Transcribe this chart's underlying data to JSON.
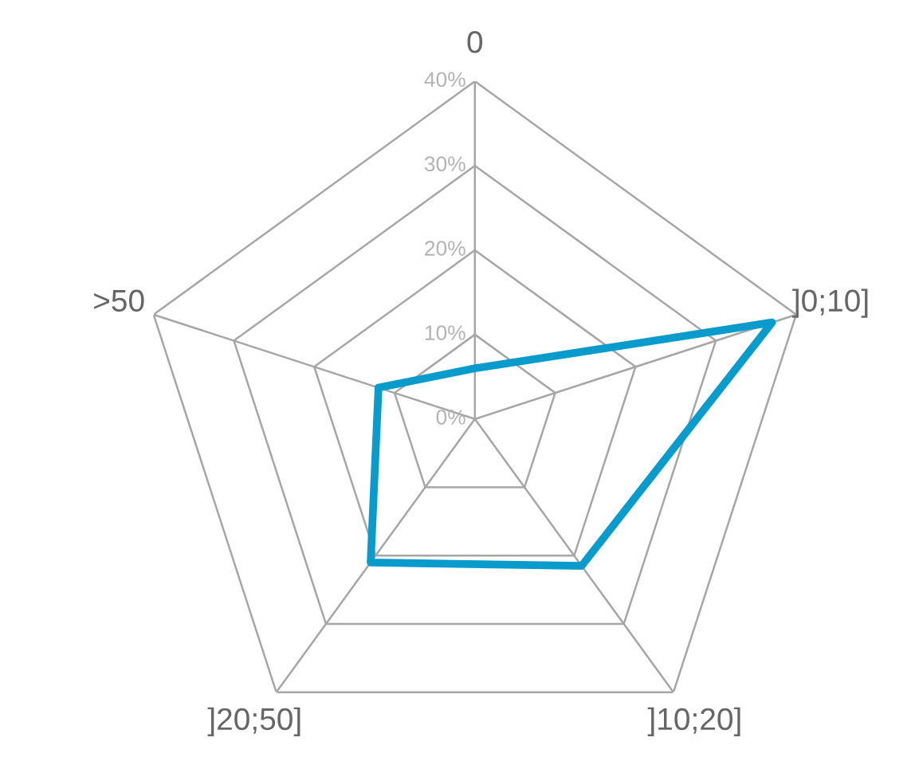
{
  "chart_data": {
    "type": "radar",
    "categories": [
      "0",
      "]0;10]",
      "]10;20]",
      "]20;50]",
      ">50"
    ],
    "series": [
      {
        "color": "#0a9bcd",
        "values": [
          6,
          37,
          21.5,
          21,
          12
        ]
      }
    ],
    "ylim": [
      0,
      40
    ],
    "yticks": [
      {
        "value": 0,
        "label": "0%"
      },
      {
        "value": 10,
        "label": "10%"
      },
      {
        "value": 20,
        "label": "20%"
      },
      {
        "value": 30,
        "label": "30%"
      },
      {
        "value": 40,
        "label": "40%"
      }
    ],
    "grid": true
  }
}
